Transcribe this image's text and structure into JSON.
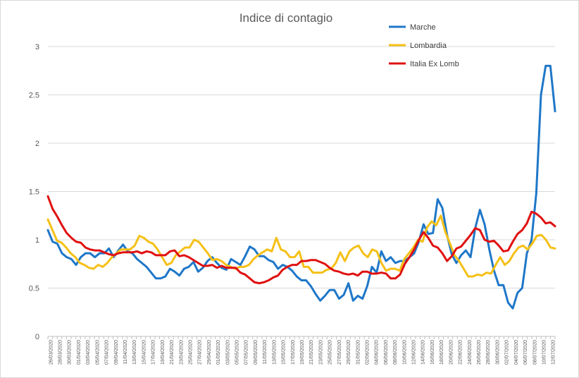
{
  "chart_data": {
    "type": "line",
    "title": "Indice di contagio",
    "xlabel": "",
    "ylabel": "",
    "ylim": [
      0,
      3
    ],
    "yticks": [
      {
        "value": 0,
        "label": "0"
      },
      {
        "value": 0.5,
        "label": "0.5"
      },
      {
        "value": 1,
        "label": "1"
      },
      {
        "value": 1.5,
        "label": "1.5"
      },
      {
        "value": 2,
        "label": "2"
      },
      {
        "value": 2.5,
        "label": "2.5"
      },
      {
        "value": 3,
        "label": "3"
      }
    ],
    "grid": true,
    "legend_position": "top-right",
    "x_tick_labels": [
      "26/03/2020",
      "28/03/2020",
      "30/03/2020",
      "01/04/2020",
      "03/04/2020",
      "05/04/2020",
      "07/04/2020",
      "09/04/2020",
      "11/04/2020",
      "13/04/2020",
      "15/04/2020",
      "17/04/2020",
      "19/04/2020",
      "21/04/2020",
      "23/04/2020",
      "25/04/2020",
      "27/04/2020",
      "29/04/2020",
      "01/05/2020",
      "03/05/2020",
      "05/05/2020",
      "07/05/2020",
      "09/05/2020",
      "11/05/2020",
      "13/05/2020",
      "15/05/2020",
      "17/05/2020",
      "19/05/2020",
      "21/05/2020",
      "23/05/2020",
      "25/05/2020",
      "27/05/2020",
      "29/05/2020",
      "31/05/2020",
      "02/06/2020",
      "04/06/2020",
      "06/06/2020",
      "08/06/2020",
      "10/06/2020",
      "12/06/2020",
      "14/06/2020",
      "16/06/2020",
      "18/06/2020",
      "20/06/2020",
      "22/06/2020",
      "24/06/2020",
      "26/06/2020",
      "28/06/2020",
      "30/06/2020",
      "02/07/2020",
      "04/07/2020",
      "06/07/2020",
      "08/07/2020",
      "10/07/2020",
      "12/07/2020"
    ],
    "series": [
      {
        "name": "Marche",
        "color": "#1f77c8",
        "values": [
          1.1,
          0.98,
          0.96,
          0.86,
          0.82,
          0.8,
          0.74,
          0.82,
          0.86,
          0.86,
          0.82,
          0.86,
          0.86,
          0.91,
          0.82,
          0.89,
          0.95,
          0.88,
          0.86,
          0.8,
          0.76,
          0.72,
          0.66,
          0.6,
          0.6,
          0.62,
          0.7,
          0.67,
          0.63,
          0.7,
          0.72,
          0.77,
          0.67,
          0.71,
          0.78,
          0.82,
          0.76,
          0.71,
          0.69,
          0.8,
          0.77,
          0.74,
          0.83,
          0.93,
          0.9,
          0.83,
          0.83,
          0.79,
          0.77,
          0.7,
          0.74,
          0.72,
          0.68,
          0.62,
          0.58,
          0.58,
          0.52,
          0.44,
          0.37,
          0.42,
          0.48,
          0.48,
          0.39,
          0.43,
          0.55,
          0.37,
          0.42,
          0.39,
          0.52,
          0.72,
          0.66,
          0.88,
          0.78,
          0.82,
          0.76,
          0.78,
          0.78,
          0.82,
          0.86,
          0.98,
          1.16,
          1.06,
          1.07,
          1.42,
          1.33,
          1.05,
          0.85,
          0.76,
          0.84,
          0.89,
          0.82,
          1.12,
          1.31,
          1.16,
          0.9,
          0.68,
          0.53,
          0.53,
          0.35,
          0.29,
          0.45,
          0.5,
          0.86,
          1.0,
          1.48,
          2.5,
          2.8,
          2.8,
          2.33
        ]
      },
      {
        "name": "Lombardia",
        "color": "#f5c016",
        "values": [
          1.21,
          1.1,
          0.99,
          0.97,
          0.92,
          0.86,
          0.82,
          0.76,
          0.74,
          0.71,
          0.7,
          0.74,
          0.72,
          0.76,
          0.82,
          0.86,
          0.9,
          0.9,
          0.9,
          0.94,
          1.04,
          1.02,
          0.98,
          0.96,
          0.9,
          0.82,
          0.74,
          0.76,
          0.84,
          0.88,
          0.92,
          0.92,
          1.0,
          0.98,
          0.92,
          0.86,
          0.79,
          0.8,
          0.78,
          0.74,
          0.72,
          0.7,
          0.72,
          0.72,
          0.74,
          0.8,
          0.84,
          0.87,
          0.9,
          0.88,
          1.02,
          0.9,
          0.88,
          0.82,
          0.82,
          0.88,
          0.72,
          0.72,
          0.66,
          0.66,
          0.66,
          0.69,
          0.7,
          0.76,
          0.87,
          0.78,
          0.88,
          0.92,
          0.94,
          0.86,
          0.82,
          0.9,
          0.88,
          0.76,
          0.68,
          0.7,
          0.7,
          0.68,
          0.8,
          0.86,
          0.92,
          1.0,
          0.98,
          1.13,
          1.19,
          1.15,
          1.25,
          1.08,
          0.96,
          0.84,
          0.78,
          0.7,
          0.62,
          0.62,
          0.64,
          0.63,
          0.66,
          0.65,
          0.74,
          0.82,
          0.74,
          0.78,
          0.86,
          0.92,
          0.94,
          0.9,
          0.96,
          1.04,
          1.05,
          1.0,
          0.92,
          0.91
        ]
      },
      {
        "name": "Italia Ex Lomb",
        "color": "#e01010",
        "values": [
          1.45,
          1.32,
          1.24,
          1.15,
          1.07,
          1.02,
          0.98,
          0.97,
          0.92,
          0.9,
          0.89,
          0.89,
          0.87,
          0.85,
          0.84,
          0.86,
          0.87,
          0.87,
          0.87,
          0.88,
          0.86,
          0.88,
          0.87,
          0.84,
          0.84,
          0.84,
          0.88,
          0.89,
          0.83,
          0.84,
          0.82,
          0.79,
          0.76,
          0.73,
          0.73,
          0.74,
          0.71,
          0.73,
          0.71,
          0.71,
          0.71,
          0.66,
          0.64,
          0.6,
          0.56,
          0.55,
          0.56,
          0.58,
          0.61,
          0.63,
          0.69,
          0.72,
          0.74,
          0.74,
          0.78,
          0.78,
          0.79,
          0.79,
          0.77,
          0.75,
          0.71,
          0.68,
          0.67,
          0.65,
          0.64,
          0.65,
          0.63,
          0.67,
          0.67,
          0.65,
          0.65,
          0.66,
          0.65,
          0.6,
          0.6,
          0.64,
          0.75,
          0.82,
          0.9,
          1.0,
          1.08,
          1.02,
          0.94,
          0.92,
          0.86,
          0.78,
          0.83,
          0.91,
          0.93,
          0.99,
          1.05,
          1.12,
          1.1,
          1.0,
          0.98,
          0.99,
          0.94,
          0.88,
          0.89,
          0.98,
          1.06,
          1.1,
          1.17,
          1.29,
          1.27,
          1.23,
          1.17,
          1.18,
          1.14
        ]
      }
    ]
  }
}
